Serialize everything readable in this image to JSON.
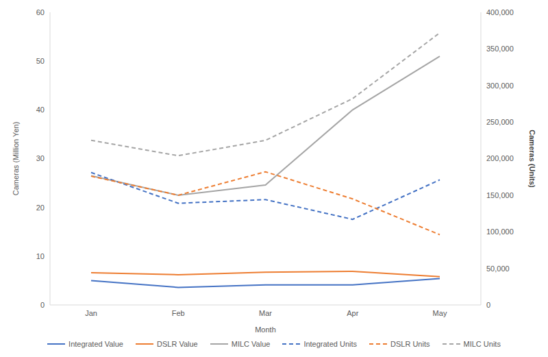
{
  "chart_data": {
    "type": "line",
    "x_label": "Month",
    "y_label": "Cameras (Million Yen)",
    "y2_label": "Cameras (Units)",
    "categories": [
      "Jan",
      "Feb",
      "Mar",
      "Apr",
      "May"
    ],
    "ylim": [
      0,
      60
    ],
    "yticks": [
      0,
      10,
      20,
      30,
      40,
      50,
      60
    ],
    "y2lim": [
      0,
      400000
    ],
    "y2ticks": [
      0,
      {
        "value": 50000,
        "label": "50,000"
      },
      {
        "value": 100000,
        "label": "100,000"
      },
      {
        "value": 150000,
        "label": "150,000"
      },
      {
        "value": 200000,
        "label": "200,000"
      },
      {
        "value": 250000,
        "label": "250,000"
      },
      {
        "value": 300000,
        "label": "300,000"
      },
      {
        "value": 350000,
        "label": "350,000"
      },
      {
        "value": 400000,
        "label": "400,000"
      }
    ],
    "grid": false,
    "legend": "bottom",
    "series": [
      {
        "name": "Integrated Value",
        "color": "#4472c4",
        "line_style": "solid",
        "values": [
          5.0,
          3.6,
          4.1,
          4.1,
          5.4
        ]
      },
      {
        "name": "DSLR Value",
        "color": "#ed7d31",
        "line_style": "solid",
        "values": [
          6.6,
          6.2,
          6.7,
          6.9,
          5.8
        ]
      },
      {
        "name": "MILC Value",
        "color": "#a5a5a5",
        "line_style": "solid",
        "values": [
          26.5,
          22.5,
          24.6,
          40.0,
          51.0
        ]
      },
      {
        "name": "Integrated Units",
        "color": "#4472c4",
        "line_style": "dashed",
        "axis": "y2",
        "values": [
          181000,
          139000,
          144000,
          117000,
          171000
        ]
      },
      {
        "name": "DSLR Units",
        "color": "#ed7d31",
        "line_style": "dashed",
        "axis": "y2",
        "values": [
          176000,
          150000,
          182000,
          145000,
          96000
        ]
      },
      {
        "name": "MILC Units",
        "color": "#a5a5a5",
        "line_style": "dashed",
        "axis": "y2",
        "values": [
          225000,
          204000,
          225000,
          282000,
          372000
        ]
      }
    ]
  }
}
